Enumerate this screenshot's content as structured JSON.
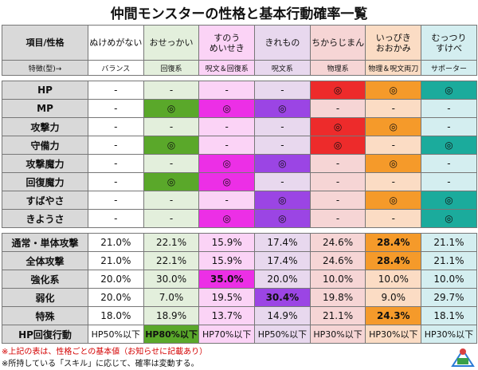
{
  "title": "仲間モンスターの性格と基本行動確率一覧",
  "header": {
    "item_label": "項目/性格",
    "trait_label": "特徴(型)→",
    "columns": [
      {
        "name": "ぬけめがない",
        "trait": "バランス",
        "bg": "#ffffff"
      },
      {
        "name": "おせっかい",
        "trait": "回復系",
        "bg": "#e3efdc"
      },
      {
        "name": "すのう\nめいせき",
        "trait": "呪文＆回復系",
        "bg": "#fbd3f6"
      },
      {
        "name": "きれもの",
        "trait": "呪文系",
        "bg": "#e8d8ee"
      },
      {
        "name": "ちからじまん",
        "trait": "物理系",
        "bg": "#f6d5d5"
      },
      {
        "name": "いっぴき\nおおかみ",
        "trait": "物理＆呪文両刀",
        "bg": "#fbdcc4"
      },
      {
        "name": "むっつり\nすけべ",
        "trait": "サポーター",
        "bg": "#d4eef0"
      }
    ]
  },
  "colors": {
    "highlight": [
      "#ffffff",
      "#5aa82a",
      "#ec2fe6",
      "#9b45e4",
      "#ed2b2b",
      "#f59a2a",
      "#1bab9c"
    ],
    "label_bg": "#d9d9d9"
  },
  "trait_rows": [
    {
      "label": "HP",
      "cells": [
        "-",
        "-",
        "-",
        "-",
        "◎",
        "◎",
        "◎"
      ],
      "mark": [
        false,
        false,
        false,
        false,
        true,
        true,
        true
      ]
    },
    {
      "label": "MP",
      "cells": [
        "-",
        "◎",
        "◎",
        "◎",
        "-",
        "-",
        "-"
      ],
      "mark": [
        false,
        true,
        true,
        true,
        false,
        false,
        false
      ]
    },
    {
      "label": "攻撃力",
      "cells": [
        "-",
        "-",
        "-",
        "-",
        "◎",
        "◎",
        "-"
      ],
      "mark": [
        false,
        false,
        false,
        false,
        true,
        true,
        false
      ]
    },
    {
      "label": "守備力",
      "cells": [
        "-",
        "◎",
        "-",
        "-",
        "◎",
        "-",
        "◎"
      ],
      "mark": [
        false,
        true,
        false,
        false,
        true,
        false,
        true
      ]
    },
    {
      "label": "攻撃魔力",
      "cells": [
        "-",
        "-",
        "◎",
        "◎",
        "-",
        "◎",
        "-"
      ],
      "mark": [
        false,
        false,
        true,
        true,
        false,
        true,
        false
      ]
    },
    {
      "label": "回復魔力",
      "cells": [
        "-",
        "◎",
        "◎",
        "-",
        "-",
        "-",
        "-"
      ],
      "mark": [
        false,
        true,
        true,
        false,
        false,
        false,
        false
      ]
    },
    {
      "label": "すばやさ",
      "cells": [
        "-",
        "-",
        "-",
        "◎",
        "-",
        "◎",
        "◎"
      ],
      "mark": [
        false,
        false,
        false,
        true,
        false,
        true,
        true
      ]
    },
    {
      "label": "きようさ",
      "cells": [
        "-",
        "-",
        "◎",
        "◎",
        "-",
        "-",
        "◎"
      ],
      "mark": [
        false,
        false,
        true,
        true,
        false,
        false,
        true
      ]
    }
  ],
  "prob_rows": [
    {
      "label": "通常・単体攻撃",
      "cells": [
        "21.0%",
        "22.1%",
        "15.9%",
        "17.4%",
        "24.6%",
        "28.4%",
        "21.1%"
      ],
      "hl": [
        false,
        false,
        false,
        false,
        false,
        true,
        false
      ]
    },
    {
      "label": "全体攻撃",
      "cells": [
        "21.0%",
        "22.1%",
        "15.9%",
        "17.4%",
        "24.6%",
        "28.4%",
        "21.1%"
      ],
      "hl": [
        false,
        false,
        false,
        false,
        false,
        true,
        false
      ]
    },
    {
      "label": "強化系",
      "cells": [
        "20.0%",
        "30.0%",
        "35.0%",
        "20.0%",
        "10.0%",
        "10.0%",
        "10.0%"
      ],
      "hl": [
        false,
        false,
        true,
        false,
        false,
        false,
        false
      ]
    },
    {
      "label": "弱化",
      "cells": [
        "20.0%",
        "7.0%",
        "19.5%",
        "30.4%",
        "19.8%",
        "9.0%",
        "29.7%"
      ],
      "hl": [
        false,
        false,
        false,
        true,
        false,
        false,
        false
      ]
    },
    {
      "label": "特殊",
      "cells": [
        "18.0%",
        "18.9%",
        "13.7%",
        "14.9%",
        "21.1%",
        "24.3%",
        "18.1%"
      ],
      "hl": [
        false,
        false,
        false,
        false,
        false,
        true,
        false
      ]
    },
    {
      "label": "HP回復行動",
      "cells": [
        "HP50%以下",
        "HP80%以下",
        "HP70%以下",
        "HP50%以下",
        "HP30%以下",
        "HP30%以下",
        "HP30%以下"
      ],
      "hl": [
        false,
        true,
        false,
        false,
        false,
        false,
        false
      ]
    }
  ],
  "notes": [
    "※上記の表は、性格ごとの基本値（お知らせに記載あり）",
    "※所持している「スキル」に応じて、確率は変動する。"
  ]
}
